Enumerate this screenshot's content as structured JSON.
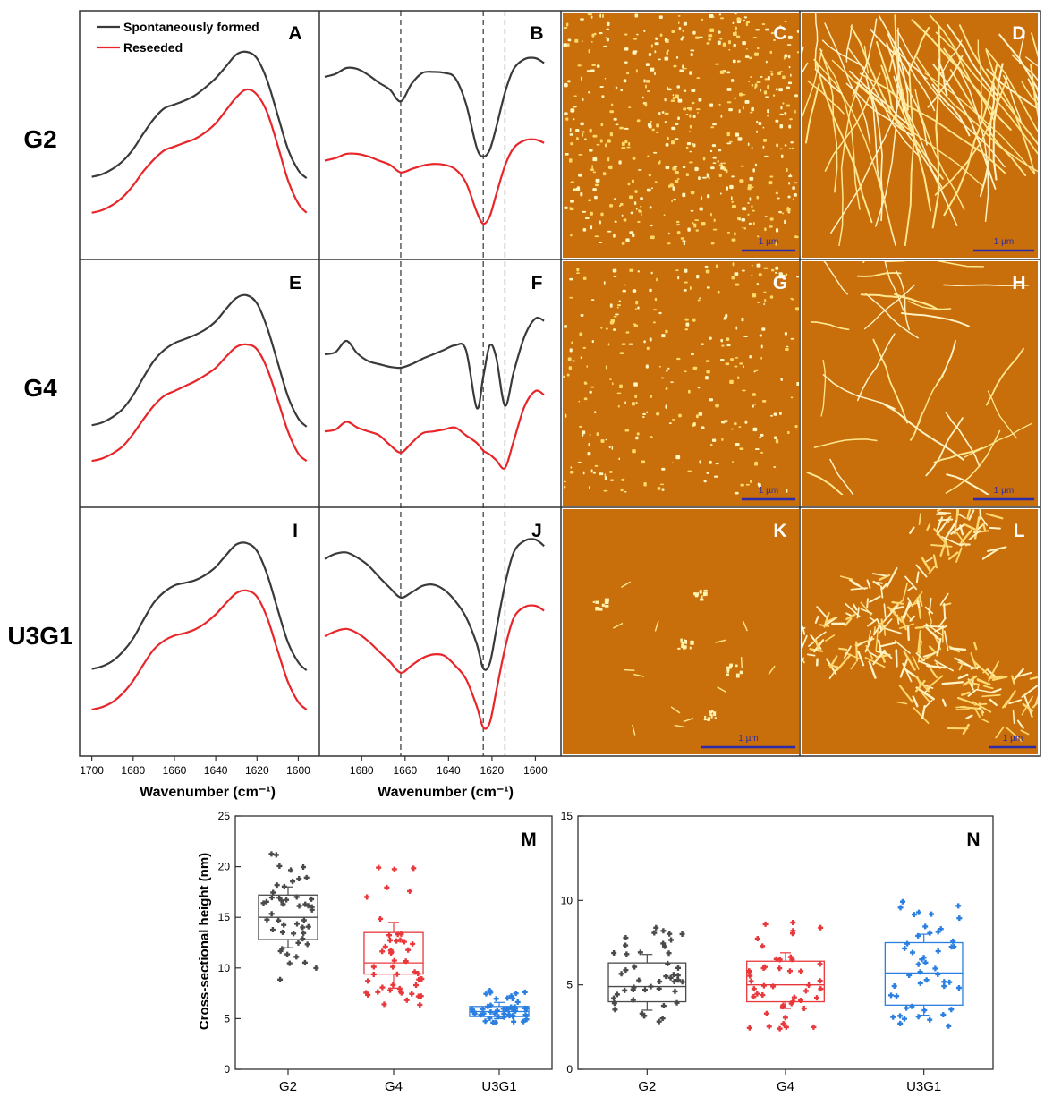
{
  "colors": {
    "spontaneous": "#3a3a3a",
    "reseeded": "#e8262a",
    "g2": "#4a4a4a",
    "g4": "#e8383c",
    "u3g1": "#2a7fe0",
    "afm_bg": "#c86f0c",
    "afm_feature": "#fff0a0",
    "scalebar": "#2c2ca8"
  },
  "row_labels": [
    "G2",
    "G4",
    "U3G1"
  ],
  "panel_letters": [
    "A",
    "B",
    "C",
    "D",
    "E",
    "F",
    "G",
    "H",
    "I",
    "J",
    "K",
    "L",
    "M",
    "N"
  ],
  "scale_bar_label": "1 µm",
  "chart_data": [
    {
      "type": "line",
      "role": "FTIR absorbance spectra (panels A, E, I)",
      "panels": [
        "A",
        "E",
        "I"
      ],
      "xlabel": "Wavenumber (cm⁻¹)",
      "xlim": [
        1702,
        1595
      ],
      "xticks": [
        1700,
        1680,
        1660,
        1640,
        1620,
        1600
      ],
      "legend": {
        "placement": "top-left",
        "entries": [
          "Spontaneously formed",
          "Reseeded"
        ]
      },
      "series_names": [
        "Spontaneously formed",
        "Reseeded"
      ],
      "x": [
        1700,
        1695,
        1690,
        1685,
        1680,
        1675,
        1670,
        1665,
        1660,
        1655,
        1650,
        1645,
        1640,
        1635,
        1630,
        1625,
        1620,
        1615,
        1610,
        1605,
        1600,
        1596
      ],
      "panels_data": [
        {
          "panel": "A",
          "spontaneous": [
            0.05,
            0.07,
            0.11,
            0.17,
            0.26,
            0.38,
            0.49,
            0.57,
            0.6,
            0.63,
            0.67,
            0.73,
            0.8,
            0.89,
            0.98,
            1.0,
            0.95,
            0.78,
            0.52,
            0.26,
            0.1,
            0.04
          ],
          "reseeded": [
            0.05,
            0.07,
            0.11,
            0.17,
            0.26,
            0.37,
            0.46,
            0.53,
            0.56,
            0.59,
            0.62,
            0.67,
            0.74,
            0.84,
            0.94,
            1.0,
            0.96,
            0.82,
            0.57,
            0.3,
            0.12,
            0.05
          ]
        },
        {
          "panel": "E",
          "spontaneous": [
            0.05,
            0.07,
            0.11,
            0.17,
            0.27,
            0.4,
            0.52,
            0.6,
            0.65,
            0.68,
            0.71,
            0.75,
            0.81,
            0.9,
            0.98,
            1.0,
            0.94,
            0.76,
            0.51,
            0.26,
            0.1,
            0.04
          ],
          "reseeded": [
            0.05,
            0.07,
            0.11,
            0.17,
            0.27,
            0.39,
            0.5,
            0.58,
            0.62,
            0.66,
            0.7,
            0.75,
            0.81,
            0.9,
            0.98,
            1.0,
            0.96,
            0.8,
            0.55,
            0.29,
            0.11,
            0.05
          ]
        },
        {
          "panel": "I",
          "spontaneous": [
            0.05,
            0.07,
            0.11,
            0.18,
            0.28,
            0.42,
            0.55,
            0.63,
            0.68,
            0.7,
            0.72,
            0.76,
            0.82,
            0.91,
            0.99,
            1.0,
            0.94,
            0.76,
            0.5,
            0.25,
            0.1,
            0.04
          ],
          "reseeded": [
            0.05,
            0.07,
            0.11,
            0.18,
            0.28,
            0.41,
            0.53,
            0.6,
            0.64,
            0.66,
            0.69,
            0.74,
            0.81,
            0.9,
            0.98,
            1.0,
            0.95,
            0.78,
            0.52,
            0.27,
            0.11,
            0.05
          ]
        }
      ]
    },
    {
      "type": "line",
      "role": "FTIR second-derivative spectra (panels B, F, J)",
      "panels": [
        "B",
        "F",
        "J"
      ],
      "xlabel": "Wavenumber (cm⁻¹)",
      "xlim": [
        1697,
        1594
      ],
      "xticks": [
        1680,
        1660,
        1640,
        1620,
        1600
      ],
      "reference_lines_cm": [
        1662,
        1624,
        1614
      ],
      "series_names": [
        "Spontaneously formed",
        "Reseeded"
      ],
      "x": [
        1697,
        1692,
        1687,
        1682,
        1677,
        1672,
        1667,
        1662,
        1657,
        1652,
        1647,
        1642,
        1637,
        1632,
        1627,
        1624,
        1621,
        1618,
        1614,
        1610,
        1605,
        1600,
        1596
      ],
      "panels_data": [
        {
          "panel": "B",
          "spontaneous": [
            0.62,
            0.68,
            0.8,
            0.78,
            0.66,
            0.5,
            0.36,
            0.12,
            0.48,
            0.7,
            0.72,
            0.7,
            0.6,
            0.08,
            -0.82,
            -1.0,
            -0.86,
            -0.4,
            0.3,
            0.78,
            0.98,
            1.0,
            0.9
          ],
          "reseeded": [
            0.5,
            0.56,
            0.66,
            0.66,
            0.6,
            0.5,
            0.4,
            0.22,
            0.3,
            0.38,
            0.42,
            0.4,
            0.3,
            -0.02,
            -0.72,
            -1.0,
            -0.82,
            -0.3,
            0.38,
            0.8,
            0.98,
            1.0,
            0.92
          ]
        },
        {
          "panel": "F",
          "spontaneous": [
            0.2,
            0.25,
            0.5,
            0.22,
            0.05,
            -0.02,
            -0.08,
            -0.1,
            -0.02,
            0.1,
            0.2,
            0.3,
            0.4,
            0.3,
            -1.0,
            -0.3,
            0.4,
            0.12,
            -0.95,
            -0.2,
            0.6,
            1.0,
            0.95
          ],
          "reseeded": [
            -0.05,
            0.0,
            0.2,
            0.05,
            -0.05,
            -0.15,
            -0.4,
            -0.6,
            -0.35,
            -0.1,
            -0.05,
            0.0,
            0.05,
            -0.15,
            -0.35,
            -0.55,
            -0.65,
            -0.8,
            -1.0,
            -0.3,
            0.6,
            1.0,
            0.9
          ]
        },
        {
          "panel": "J",
          "spontaneous": [
            0.7,
            0.78,
            0.8,
            0.72,
            0.6,
            0.42,
            0.25,
            0.1,
            0.18,
            0.28,
            0.3,
            0.22,
            0.05,
            -0.2,
            -0.62,
            -1.0,
            -0.92,
            -0.4,
            0.3,
            0.8,
            0.98,
            1.0,
            0.9
          ],
          "reseeded": [
            0.5,
            0.58,
            0.62,
            0.55,
            0.42,
            0.25,
            0.08,
            -0.1,
            0.02,
            0.14,
            0.2,
            0.18,
            0.02,
            -0.2,
            -0.65,
            -1.0,
            -0.92,
            -0.4,
            0.3,
            0.8,
            0.98,
            1.0,
            0.92
          ]
        }
      ]
    },
    {
      "type": "box",
      "panel": "M",
      "categories": [
        "G2",
        "G4",
        "U3G1"
      ],
      "ylabel": "Cross-sectional height (nm)",
      "ylim": [
        0,
        25
      ],
      "yticks": [
        0,
        5,
        10,
        15,
        20,
        25
      ],
      "boxes": [
        {
          "name": "G2",
          "q1": 12.8,
          "median": 15.0,
          "q3": 17.2,
          "whisker_low": 12.0,
          "whisker_high": 18.0,
          "min": 8.8,
          "max": 21.4
        },
        {
          "name": "G4",
          "q1": 9.4,
          "median": 10.5,
          "q3": 13.5,
          "whisker_low": 8.0,
          "whisker_high": 14.5,
          "min": 6.2,
          "max": 20.2
        },
        {
          "name": "U3G1",
          "q1": 5.2,
          "median": 5.7,
          "q3": 6.2,
          "whisker_low": 5.0,
          "whisker_high": 6.6,
          "min": 4.6,
          "max": 7.8
        }
      ]
    },
    {
      "type": "box",
      "panel": "N",
      "categories": [
        "G2",
        "G4",
        "U3G1"
      ],
      "ylabel": "",
      "ylim": [
        0,
        15
      ],
      "yticks": [
        0,
        5,
        10,
        15
      ],
      "boxes": [
        {
          "name": "G2",
          "q1": 4.0,
          "median": 4.9,
          "q3": 6.3,
          "whisker_low": 3.5,
          "whisker_high": 6.8,
          "min": 2.8,
          "max": 8.4
        },
        {
          "name": "G4",
          "q1": 4.0,
          "median": 5.0,
          "q3": 6.4,
          "whisker_low": 3.6,
          "whisker_high": 6.9,
          "min": 2.4,
          "max": 8.7
        },
        {
          "name": "U3G1",
          "q1": 3.8,
          "median": 5.7,
          "q3": 7.5,
          "whisker_low": 3.2,
          "whisker_high": 8.0,
          "min": 2.5,
          "max": 10.5
        }
      ]
    }
  ]
}
